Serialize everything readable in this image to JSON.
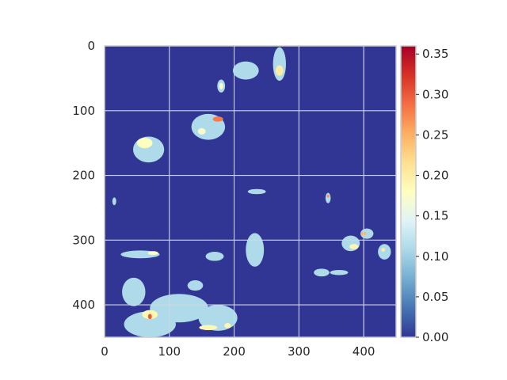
{
  "chart_data": {
    "type": "heatmap",
    "title": "",
    "xlabel": "",
    "ylabel": "",
    "xlim": [
      0,
      450
    ],
    "ylim": [
      450,
      0
    ],
    "y_axis_inverted": true,
    "grid": true,
    "x_ticks": [
      0,
      100,
      200,
      300,
      400
    ],
    "x_tick_labels": [
      "0",
      "100",
      "200",
      "300",
      "400"
    ],
    "y_ticks": [
      0,
      100,
      200,
      300,
      400
    ],
    "y_tick_labels": [
      "0",
      "100",
      "200",
      "300",
      "400"
    ],
    "colormap": "RdYlBu_r",
    "colorbar": {
      "vmin": 0.0,
      "vmax": 0.36,
      "ticks": [
        0.0,
        0.05,
        0.1,
        0.15,
        0.2,
        0.25,
        0.3,
        0.35
      ],
      "tick_labels": [
        "0.00",
        "0.05",
        "0.10",
        "0.15",
        "0.20",
        "0.25",
        "0.30",
        "0.35"
      ],
      "placement": "right"
    },
    "background_value": 0.0,
    "regions": [
      {
        "x": 68,
        "y": 160,
        "rx": 24,
        "ry": 20,
        "value": 0.11
      },
      {
        "x": 62,
        "y": 150,
        "rx": 12,
        "ry": 8,
        "value": 0.18
      },
      {
        "x": 160,
        "y": 125,
        "rx": 26,
        "ry": 20,
        "value": 0.11
      },
      {
        "x": 175,
        "y": 113,
        "rx": 8,
        "ry": 4,
        "value": 0.28
      },
      {
        "x": 150,
        "y": 132,
        "rx": 6,
        "ry": 5,
        "value": 0.17
      },
      {
        "x": 218,
        "y": 38,
        "rx": 20,
        "ry": 14,
        "value": 0.11
      },
      {
        "x": 270,
        "y": 28,
        "rx": 10,
        "ry": 26,
        "value": 0.11
      },
      {
        "x": 270,
        "y": 38,
        "rx": 6,
        "ry": 8,
        "value": 0.2
      },
      {
        "x": 180,
        "y": 62,
        "rx": 6,
        "ry": 10,
        "value": 0.11
      },
      {
        "x": 180,
        "y": 62,
        "rx": 3,
        "ry": 5,
        "value": 0.18
      },
      {
        "x": 235,
        "y": 225,
        "rx": 14,
        "ry": 4,
        "value": 0.11
      },
      {
        "x": 345,
        "y": 235,
        "rx": 4,
        "ry": 8,
        "value": 0.11
      },
      {
        "x": 345,
        "y": 232,
        "rx": 2,
        "ry": 2,
        "value": 0.27
      },
      {
        "x": 232,
        "y": 315,
        "rx": 14,
        "ry": 26,
        "value": 0.11
      },
      {
        "x": 380,
        "y": 305,
        "rx": 14,
        "ry": 12,
        "value": 0.11
      },
      {
        "x": 385,
        "y": 310,
        "rx": 7,
        "ry": 4,
        "value": 0.19
      },
      {
        "x": 405,
        "y": 290,
        "rx": 10,
        "ry": 8,
        "value": 0.11
      },
      {
        "x": 400,
        "y": 290,
        "rx": 4,
        "ry": 3,
        "value": 0.25
      },
      {
        "x": 432,
        "y": 318,
        "rx": 10,
        "ry": 12,
        "value": 0.11
      },
      {
        "x": 430,
        "y": 315,
        "rx": 3,
        "ry": 3,
        "value": 0.2
      },
      {
        "x": 55,
        "y": 322,
        "rx": 30,
        "ry": 6,
        "value": 0.11
      },
      {
        "x": 75,
        "y": 320,
        "rx": 8,
        "ry": 3,
        "value": 0.18
      },
      {
        "x": 170,
        "y": 325,
        "rx": 14,
        "ry": 7,
        "value": 0.11
      },
      {
        "x": 335,
        "y": 350,
        "rx": 12,
        "ry": 6,
        "value": 0.11
      },
      {
        "x": 362,
        "y": 350,
        "rx": 14,
        "ry": 4,
        "value": 0.11
      },
      {
        "x": 45,
        "y": 380,
        "rx": 18,
        "ry": 22,
        "value": 0.11
      },
      {
        "x": 115,
        "y": 405,
        "rx": 45,
        "ry": 22,
        "value": 0.11
      },
      {
        "x": 70,
        "y": 430,
        "rx": 40,
        "ry": 20,
        "value": 0.11
      },
      {
        "x": 70,
        "y": 415,
        "rx": 12,
        "ry": 7,
        "value": 0.19
      },
      {
        "x": 70,
        "y": 418,
        "rx": 3,
        "ry": 4,
        "value": 0.3
      },
      {
        "x": 175,
        "y": 420,
        "rx": 30,
        "ry": 20,
        "value": 0.11
      },
      {
        "x": 160,
        "y": 435,
        "rx": 14,
        "ry": 4,
        "value": 0.19
      },
      {
        "x": 190,
        "y": 432,
        "rx": 5,
        "ry": 4,
        "value": 0.19
      },
      {
        "x": 140,
        "y": 370,
        "rx": 12,
        "ry": 8,
        "value": 0.11
      },
      {
        "x": 15,
        "y": 240,
        "rx": 3,
        "ry": 6,
        "value": 0.11
      }
    ]
  }
}
